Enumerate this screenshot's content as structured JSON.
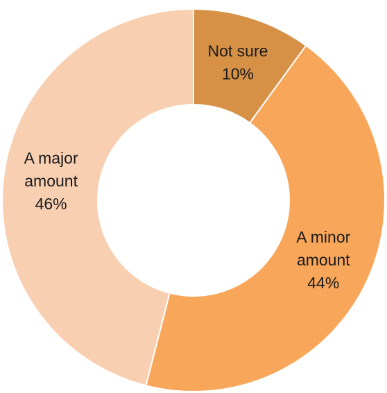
{
  "chart_data": {
    "type": "pie",
    "variant": "donut",
    "slices": [
      {
        "label_lines": [
          "Not sure"
        ],
        "percent_label": "10%",
        "value": 10,
        "color": "#D69147"
      },
      {
        "label_lines": [
          "A minor",
          "amount"
        ],
        "percent_label": "44%",
        "value": 44,
        "color": "#F8A75A"
      },
      {
        "label_lines": [
          "A major",
          "amount"
        ],
        "percent_label": "46%",
        "value": 46,
        "color": "#F9CFB2"
      }
    ],
    "start_angle_deg": 0,
    "direction": "clockwise",
    "slice_border_color": "#ffffff",
    "background_color": "#ffffff"
  }
}
